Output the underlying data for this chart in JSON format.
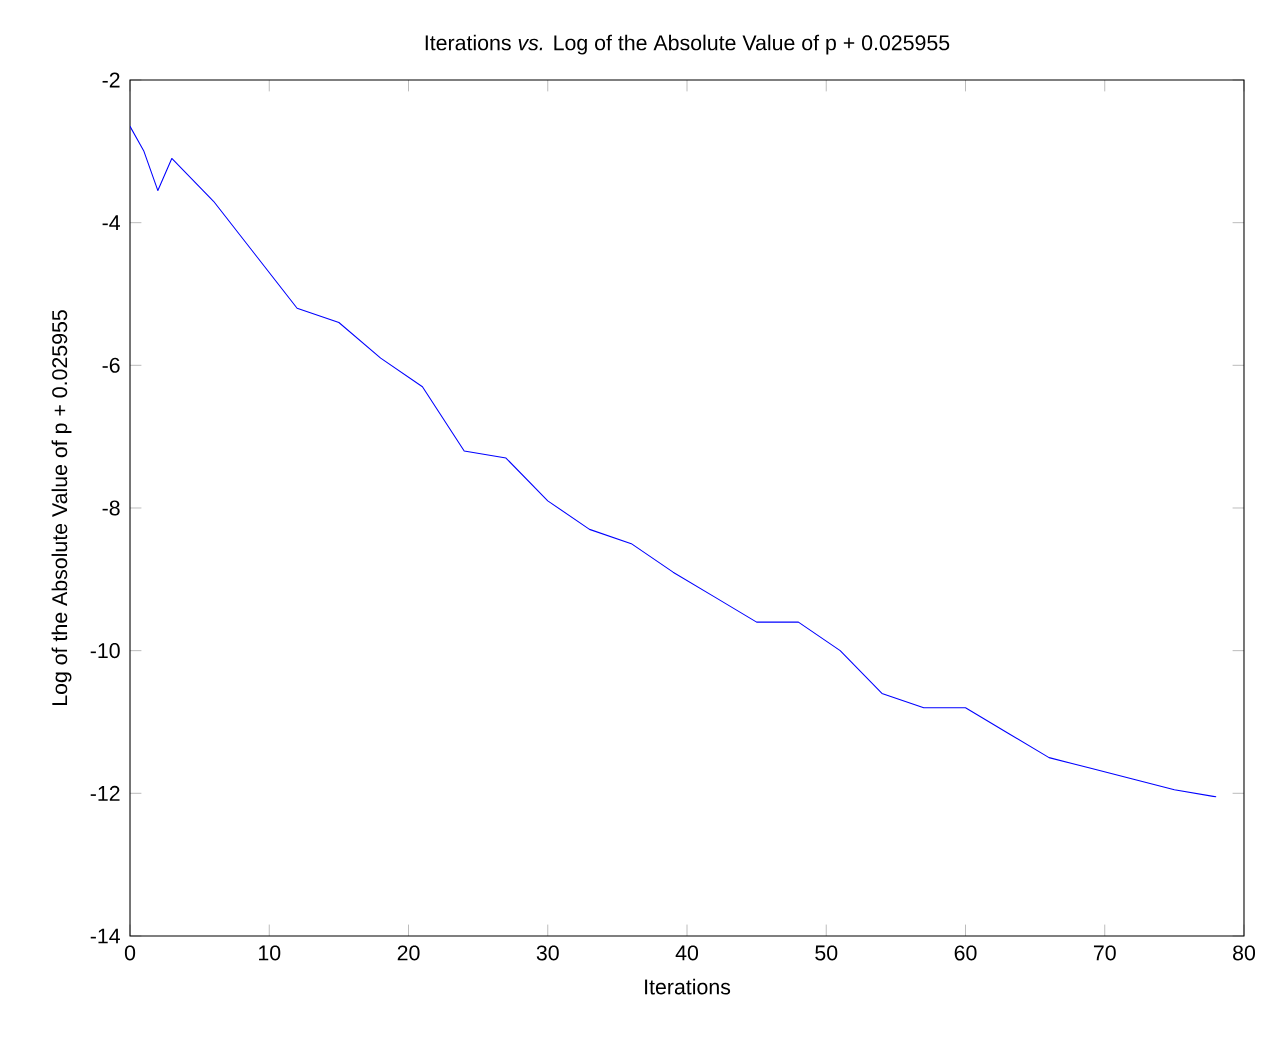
{
  "chart_data": {
    "type": "line",
    "title": "Iterations *vs.* Log of the Absolute Value of p + 0.025955",
    "xlabel": "Iterations",
    "ylabel": "Log of the Absolute Value of p + 0.025955",
    "x": [
      0,
      1,
      2,
      3,
      6,
      9,
      12,
      15,
      18,
      21,
      24,
      27,
      30,
      33,
      36,
      39,
      42,
      45,
      48,
      51,
      54,
      57,
      60,
      63,
      66,
      69,
      72,
      75,
      78
    ],
    "values": [
      -2.65,
      -3.0,
      -3.55,
      -3.1,
      -3.7,
      -4.45,
      -5.2,
      -5.4,
      -5.9,
      -6.3,
      -7.2,
      -7.3,
      -7.9,
      -8.3,
      -8.5,
      -8.9,
      -9.25,
      -9.6,
      -9.6,
      -10.0,
      -10.6,
      -10.8,
      -10.8,
      -11.15,
      -11.5,
      -11.65,
      -11.8,
      -11.95,
      -12.05
    ],
    "color": "#0000ff",
    "xlim": [
      0,
      80
    ],
    "ylim": [
      -14,
      -2
    ],
    "xticks": [
      0,
      10,
      20,
      30,
      40,
      50,
      60,
      70,
      80
    ],
    "yticks": [
      -14,
      -12,
      -10,
      -8,
      -6,
      -4,
      -2
    ],
    "grid": false,
    "marker": "none",
    "line_style": "solid"
  }
}
